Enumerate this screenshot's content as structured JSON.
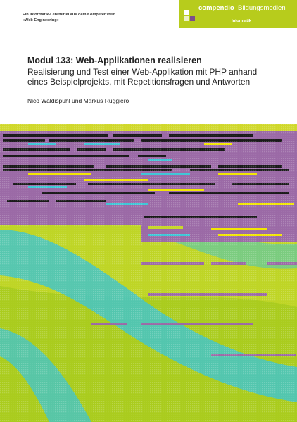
{
  "series": {
    "line1": "Ein Informatik-Lehrmittel aus dem Kompetenzfeld",
    "line2": "«Web Engineering»"
  },
  "publisher": {
    "name": "compendio",
    "subtitle": "Bildungsmedien",
    "category": "Informatik"
  },
  "book": {
    "title": "Modul 133: Web-Applikationen realisieren",
    "subtitle_line1": "Realisierung und Test einer Web-Applikation mit PHP anhand",
    "subtitle_line2": "eines Beispielprojekts, mit Repetitionsfragen und Antworten",
    "authors": "Nico Waldispühl und Markus Ruggiero"
  },
  "colors": {
    "lime": "#b7cc1c",
    "purple": "#9b6aa6",
    "cyan": "#3ec6d6",
    "yellow": "#f2e600"
  }
}
